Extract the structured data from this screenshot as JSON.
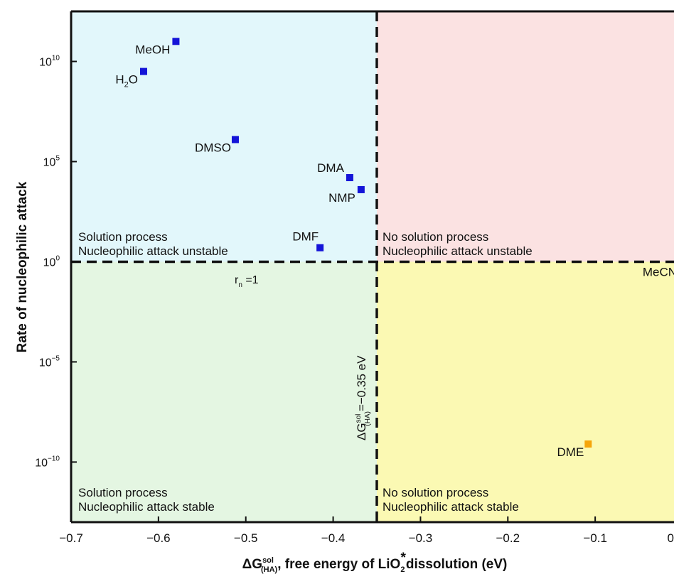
{
  "chart_data": {
    "type": "scatter",
    "xlabel": {
      "prefix": "ΔG",
      "sup": "sol",
      "sub": "(HA)",
      "mid": ", free energy of LiO",
      "sub2": "2",
      "star": "*",
      "suffix": "dissolution (eV)"
    },
    "ylabel": "Rate of nucleophilic attack",
    "xlim": [
      -0.7,
      0.0
    ],
    "ylim_log10": [
      -13,
      12.5
    ],
    "y_scale": "log",
    "x_ticks": [
      {
        "value": -0.7,
        "label": "−0.7"
      },
      {
        "value": -0.6,
        "label": "−0.6"
      },
      {
        "value": -0.5,
        "label": "−0.5"
      },
      {
        "value": -0.4,
        "label": "−0.4"
      },
      {
        "value": -0.3,
        "label": "−0.3"
      },
      {
        "value": -0.2,
        "label": "−0.2"
      },
      {
        "value": -0.1,
        "label": "−0.1"
      },
      {
        "value": 0.0,
        "label": "0"
      }
    ],
    "y_ticks": [
      {
        "log": 10,
        "base": "10",
        "exp": "10"
      },
      {
        "log": 5,
        "base": "10",
        "exp": "5"
      },
      {
        "log": 0,
        "base": "10",
        "exp": "0"
      },
      {
        "log": -5,
        "base": "10",
        "exp": "−5"
      },
      {
        "log": -10,
        "base": "10",
        "exp": "−10"
      }
    ],
    "thresholds": {
      "x": {
        "value": -0.35,
        "label_main": "ΔG",
        "label_sup": "sol",
        "label_sub": "(HA)",
        "label_tail": "=−0.35 eV"
      },
      "y": {
        "log": 0,
        "label_main": "r",
        "label_sub": "n",
        "label_tail": " =1"
      }
    },
    "regions": [
      {
        "name": "top-left",
        "color": "#e2f7fb",
        "line1": "Solution process",
        "line2": "Nucleophilic attack unstable"
      },
      {
        "name": "top-right",
        "color": "#fbe2e2",
        "line1": "No solution process",
        "line2": "Nucleophilic attack unstable"
      },
      {
        "name": "bottom-left",
        "color": "#e4f6e2",
        "line1": "Solution process",
        "line2": "Nucleophilic attack stable"
      },
      {
        "name": "bottom-right",
        "color": "#fbf9b3",
        "line1": "No solution process",
        "line2": "Nucleophilic attack stable"
      }
    ],
    "series": [
      {
        "color": "#1414d8",
        "points": [
          {
            "label": "MeOH",
            "x": -0.58,
            "log_y": 11.0
          },
          {
            "label": "H",
            "label_sub": "2",
            "label_tail": "O",
            "x": -0.617,
            "log_y": 9.5
          },
          {
            "label": "DMSO",
            "x": -0.512,
            "log_y": 6.1
          },
          {
            "label": "DMA",
            "x": -0.381,
            "log_y": 4.2
          },
          {
            "label": "NMP",
            "x": -0.368,
            "log_y": 3.6
          },
          {
            "label": "DMF",
            "x": -0.415,
            "log_y": 0.7
          }
        ]
      },
      {
        "color": "#f5a50a",
        "points": [
          {
            "label": "MeCN",
            "x": 0.0,
            "log_y": 0.0
          },
          {
            "label": "DME",
            "x": -0.108,
            "log_y": -9.1
          }
        ]
      }
    ],
    "grid": false,
    "legend": "none"
  }
}
